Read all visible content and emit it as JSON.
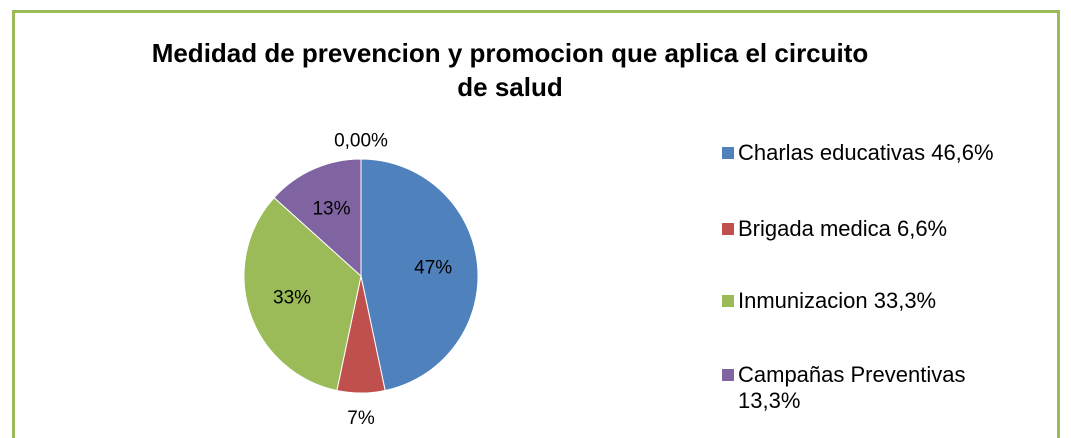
{
  "chart_data": {
    "type": "pie",
    "title": "Medidad de prevencion y promocion que aplica el circuito de salud",
    "categories": [
      "Charlas educativas 46,6%",
      "Brigada medica  6,6%",
      "Inmunizacion 33,3%",
      "Campañas Preventivas 13,3%"
    ],
    "values": [
      46.6,
      6.6,
      33.3,
      13.3
    ],
    "value_labels": [
      "47%",
      "7%",
      "33%",
      "13%"
    ],
    "colors": [
      "#4f81bd",
      "#c0504d",
      "#9bbb59",
      "#8064a2"
    ],
    "annotation": "0,00%",
    "legend": "right"
  }
}
